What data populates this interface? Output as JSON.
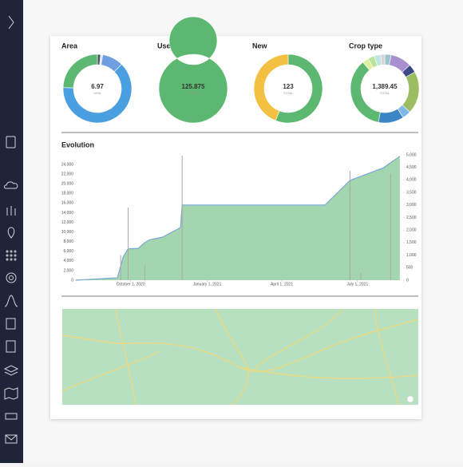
{
  "chart_data": [
    {
      "type": "donut",
      "title": "Area",
      "center_value": "6.97",
      "center_caption": "MHA",
      "values": [
        1.5,
        1,
        10,
        63,
        24.5
      ],
      "colors": [
        "#4a5568",
        "#d9e8f0",
        "#6f9fe0",
        "#4a9fe0",
        "#5cb870"
      ]
    },
    {
      "type": "donut",
      "title": "Users",
      "center_value": "125.875",
      "center_caption": "TOTAL",
      "values": [
        100
      ],
      "colors": [
        "#5cb870"
      ]
    },
    {
      "type": "donut",
      "title": "New",
      "center_value": "123",
      "center_caption": "TOTAL",
      "values": [
        56,
        44
      ],
      "colors": [
        "#5cb870",
        "#f4c042"
      ]
    },
    {
      "type": "donut",
      "title": "Crop type",
      "center_value": "1,389.45",
      "center_caption": "TOTAL",
      "values": [
        3,
        10,
        4,
        20,
        4,
        12,
        36,
        3,
        3,
        3,
        2
      ],
      "colors": [
        "#9cc7c9",
        "#a98fd0",
        "#3b4a86",
        "#9cbd62",
        "#7fb8e8",
        "#3d86c6",
        "#5cb870",
        "#dff0a0",
        "#b8e39a",
        "#bfe6e0",
        "#d6d6d6"
      ]
    },
    {
      "type": "area",
      "title": "Evolution",
      "xlim": [
        "2020-07-27",
        "2021-08-25"
      ],
      "xticks": [
        {
          "value": "2020-10-01",
          "label": "October 1, 2020"
        },
        {
          "value": "2021-01-01",
          "label": "January 1, 2021"
        },
        {
          "value": "2021-04-01",
          "label": "April 1, 2021"
        },
        {
          "value": "2021-07-01",
          "label": "July 1, 2021"
        }
      ],
      "ylim": [
        0,
        26000
      ],
      "yticks": [
        0,
        {
          "value": 2000,
          "label": "2,000"
        },
        {
          "value": 4000,
          "label": "4,000"
        },
        {
          "value": 6000,
          "label": "6,000"
        },
        {
          "value": 8000,
          "label": "8,000"
        },
        {
          "value": 10000,
          "label": "10,000"
        },
        {
          "value": 12000,
          "label": "12,000"
        },
        {
          "value": 14000,
          "label": "14,000"
        },
        {
          "value": 16000,
          "label": "16,000"
        },
        {
          "value": 18000,
          "label": "18,000"
        },
        {
          "value": 20000,
          "label": "20,000"
        },
        {
          "value": 22000,
          "label": "22,000"
        },
        {
          "value": 24000,
          "label": "24,000"
        }
      ],
      "y2lim": [
        0,
        5000
      ],
      "y2ticks": [
        0,
        500,
        {
          "value": 1000,
          "label": "1,000"
        },
        {
          "value": 1500,
          "label": "1,500"
        },
        {
          "value": 2000,
          "label": "2,000"
        },
        {
          "value": 2500,
          "label": "2,500"
        },
        {
          "value": 3000,
          "label": "3,000"
        },
        {
          "value": 3500,
          "label": "3,500"
        },
        {
          "value": 4000,
          "label": "4,000"
        },
        {
          "value": 4500,
          "label": "4,500"
        },
        {
          "value": 5000,
          "label": "5,000"
        }
      ],
      "series": [
        {
          "type": "area",
          "color": "#93cfa0",
          "line_color": "#7aa7d8",
          "x": [
            "2020-07-27",
            "2020-09-15",
            "2020-09-22",
            "2020-09-28",
            "2020-10-10",
            "2020-10-18",
            "2020-10-24",
            "2020-11-08",
            "2020-11-30",
            "2020-12-02",
            "2021-05-23",
            "2021-06-22",
            "2021-08-01",
            "2021-08-21"
          ],
          "values": [
            0,
            500,
            4800,
            6500,
            6600,
            7800,
            8400,
            8900,
            10900,
            15600,
            15600,
            20700,
            23300,
            25700
          ]
        },
        {
          "type": "bar",
          "axis": "y2",
          "color": "#a8a8a8",
          "x": [
            "2020-09-19",
            "2020-09-28",
            "2020-10-18",
            "2020-12-02",
            "2021-06-22",
            "2021-07-05",
            "2021-08-10"
          ],
          "values": [
            1000,
            2900,
            600,
            4970,
            4360,
            300,
            4230
          ]
        }
      ]
    }
  ]
}
